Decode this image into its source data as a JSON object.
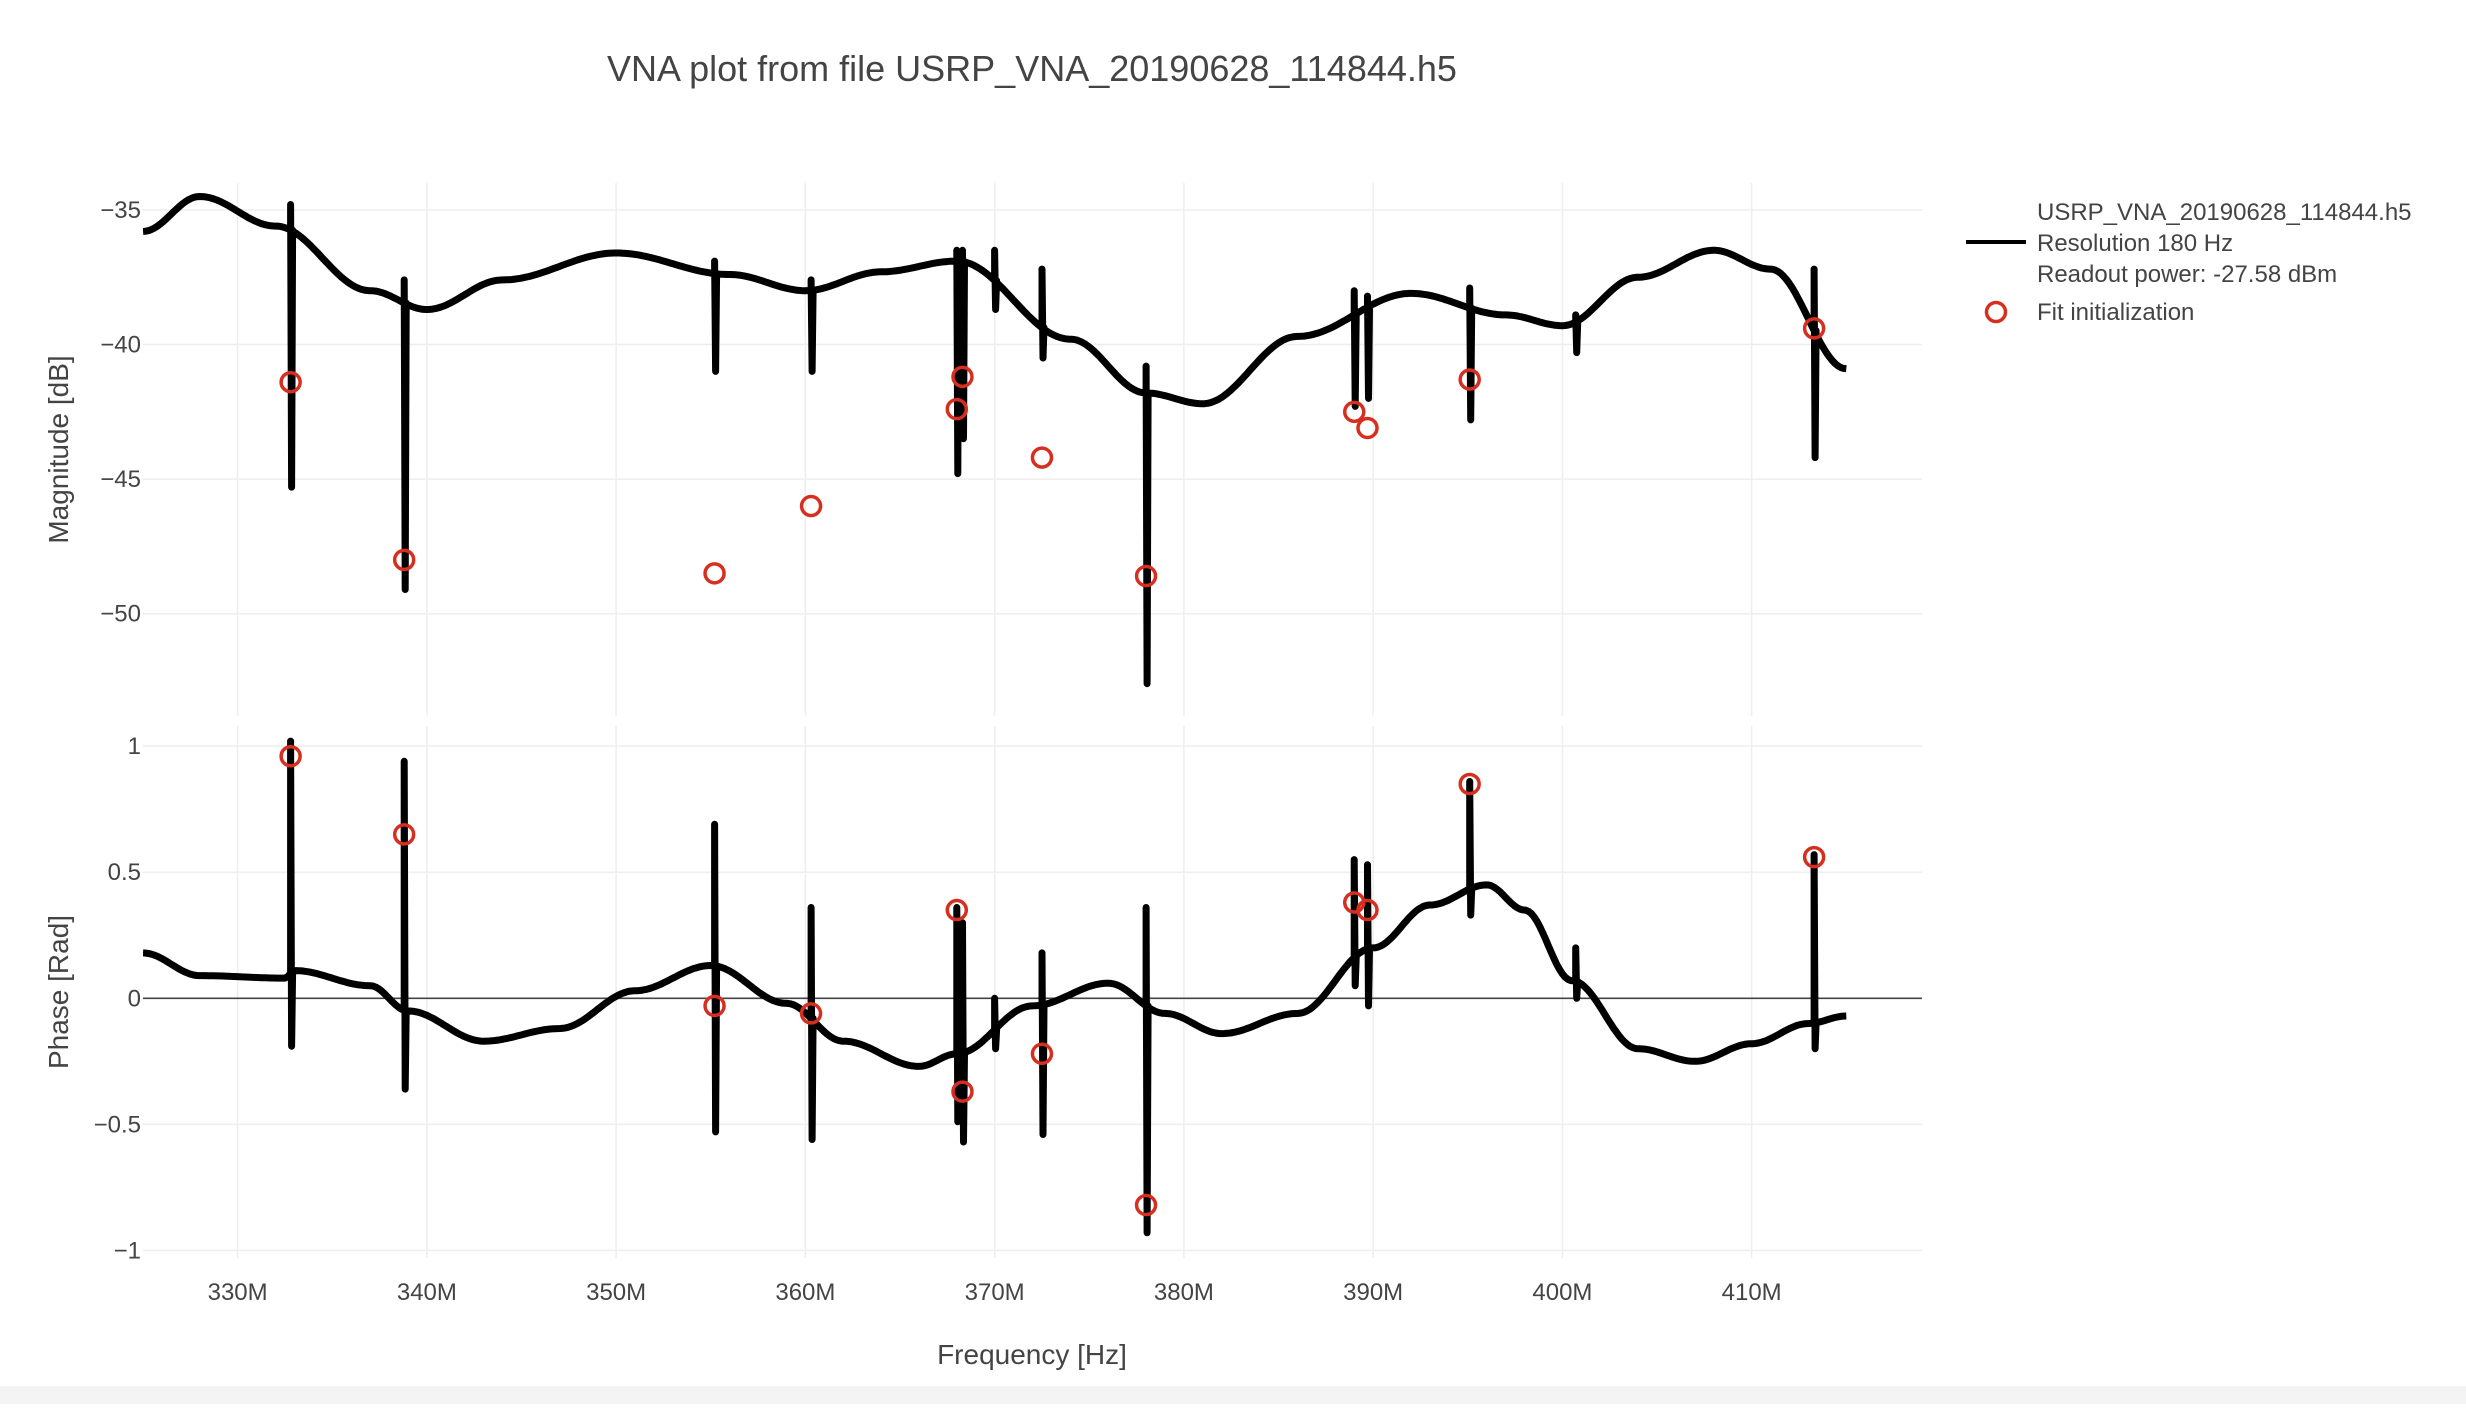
{
  "chart_data": {
    "type": "line",
    "title": "VNA plot from file USRP_VNA_20190628_114844.h5",
    "xlabel": "Frequency [Hz]",
    "x_range": [
      325000000,
      419000000
    ],
    "x_ticks": [
      330000000,
      340000000,
      350000000,
      360000000,
      370000000,
      380000000,
      390000000,
      400000000,
      410000000
    ],
    "x_tick_labels": [
      "330M",
      "340M",
      "350M",
      "360M",
      "370M",
      "380M",
      "390M",
      "400M",
      "410M"
    ],
    "grid": true,
    "legend_position": "right",
    "legend": {
      "line_label_lines": [
        "USRP_VNA_20190628_114844.h5",
        "Resolution 180 Hz",
        "Readout power: -27.58 dBm"
      ],
      "marker_label": "Fit initialization"
    },
    "colors": {
      "trace": "#000000",
      "marker": "#d62f1f",
      "grid": "#eeeeee",
      "zero_line": "#444444"
    },
    "panels": [
      {
        "name": "magnitude",
        "ylabel": "Magnitude [dB]",
        "y_range": [
          -53.8,
          -34.0
        ],
        "y_ticks": [
          -35,
          -40,
          -45,
          -50
        ],
        "y_tick_labels": [
          "−35",
          "−40",
          "−45",
          "−50"
        ],
        "trace": {
          "x": [
            325000000,
            328000000,
            332000000,
            337000000,
            340000000,
            344000000,
            350000000,
            356000000,
            360000000,
            364000000,
            368000000,
            374000000,
            378000000,
            381000000,
            386000000,
            392000000,
            397000000,
            400000000,
            404000000,
            408000000,
            411000000,
            415000000
          ],
          "y": [
            -35.8,
            -34.5,
            -35.6,
            -38.0,
            -38.7,
            -37.6,
            -36.6,
            -37.4,
            -38.0,
            -37.3,
            -36.9,
            -39.8,
            -41.8,
            -42.2,
            -39.7,
            -38.1,
            -38.9,
            -39.3,
            -37.5,
            -36.5,
            -37.2,
            -40.9
          ]
        },
        "resonances": [
          {
            "x": 332800000,
            "y": -36.0,
            "top": -34.8,
            "bottom": -45.3
          },
          {
            "x": 338800000,
            "y": -38.3,
            "top": -37.6,
            "bottom": -49.1
          },
          {
            "x": 355200000,
            "y": -37.3,
            "top": -36.9,
            "bottom": -41.0
          },
          {
            "x": 360300000,
            "y": -38.0,
            "top": -37.6,
            "bottom": -41.0
          },
          {
            "x": 368000000,
            "y": -36.9,
            "top": -36.5,
            "bottom": -44.8
          },
          {
            "x": 368300000,
            "y": -36.9,
            "top": -36.5,
            "bottom": -43.5
          },
          {
            "x": 370000000,
            "y": -37.6,
            "top": -36.5,
            "bottom": -38.7
          },
          {
            "x": 372500000,
            "y": -38.6,
            "top": -37.2,
            "bottom": -40.5
          },
          {
            "x": 378000000,
            "y": -41.8,
            "top": -40.8,
            "bottom": -52.6
          },
          {
            "x": 389000000,
            "y": -38.3,
            "top": -38.0,
            "bottom": -42.3
          },
          {
            "x": 389700000,
            "y": -38.2,
            "top": -38.2,
            "bottom": -42.0
          },
          {
            "x": 395100000,
            "y": -38.4,
            "top": -37.9,
            "bottom": -42.8
          },
          {
            "x": 400700000,
            "y": -39.2,
            "top": -38.9,
            "bottom": -40.3
          },
          {
            "x": 413300000,
            "y": -38.5,
            "top": -37.2,
            "bottom": -44.2
          }
        ],
        "markers": {
          "x": [
            332800000,
            338800000,
            355200000,
            360300000,
            368000000,
            368300000,
            372500000,
            378000000,
            389000000,
            389700000,
            395100000,
            413300000
          ],
          "y": [
            -41.4,
            -48.0,
            -48.5,
            -46.0,
            -42.4,
            -41.2,
            -44.2,
            -48.6,
            -42.5,
            -43.1,
            -41.3,
            -39.4
          ]
        }
      },
      {
        "name": "phase",
        "ylabel": "Phase [Rad]",
        "y_range": [
          -1.03,
          1.08
        ],
        "y_ticks": [
          1,
          0.5,
          0,
          -0.5,
          -1
        ],
        "y_tick_labels": [
          "1",
          "0.5",
          "0",
          "−0.5",
          "−1"
        ],
        "zero_line": true,
        "trace": {
          "x": [
            325000000,
            328000000,
            332500000,
            333000000,
            337000000,
            339000000,
            343000000,
            347000000,
            351000000,
            355000000,
            359000000,
            362000000,
            366000000,
            368000000,
            372000000,
            376000000,
            379000000,
            382000000,
            386000000,
            390000000,
            393000000,
            396000000,
            398000000,
            400500000,
            404000000,
            407000000,
            410000000,
            413000000,
            415000000
          ],
          "y": [
            0.18,
            0.09,
            0.08,
            0.11,
            0.05,
            -0.05,
            -0.17,
            -0.12,
            0.03,
            0.13,
            -0.02,
            -0.17,
            -0.27,
            -0.22,
            -0.03,
            0.06,
            -0.06,
            -0.14,
            -0.06,
            0.2,
            0.37,
            0.45,
            0.35,
            0.07,
            -0.2,
            -0.25,
            -0.18,
            -0.1,
            -0.07
          ]
        },
        "resonances": [
          {
            "x": 332800000,
            "y": 0.1,
            "top": 1.02,
            "bottom": -0.19
          },
          {
            "x": 338800000,
            "y": -0.04,
            "top": 0.94,
            "bottom": -0.36
          },
          {
            "x": 355200000,
            "y": 0.13,
            "top": 0.69,
            "bottom": -0.53
          },
          {
            "x": 360300000,
            "y": -0.06,
            "top": 0.36,
            "bottom": -0.56
          },
          {
            "x": 368000000,
            "y": -0.2,
            "top": 0.36,
            "bottom": -0.49
          },
          {
            "x": 368300000,
            "y": -0.22,
            "top": 0.3,
            "bottom": -0.57
          },
          {
            "x": 370000000,
            "y": -0.16,
            "top": 0.0,
            "bottom": -0.2
          },
          {
            "x": 372500000,
            "y": -0.03,
            "top": 0.18,
            "bottom": -0.54
          },
          {
            "x": 378000000,
            "y": 0.05,
            "top": 0.36,
            "bottom": -0.93
          },
          {
            "x": 389000000,
            "y": 0.13,
            "top": 0.55,
            "bottom": 0.05
          },
          {
            "x": 389700000,
            "y": 0.2,
            "top": 0.53,
            "bottom": -0.03
          },
          {
            "x": 395100000,
            "y": 0.45,
            "top": 0.86,
            "bottom": 0.33
          },
          {
            "x": 400700000,
            "y": 0.05,
            "top": 0.2,
            "bottom": 0.0
          },
          {
            "x": 413300000,
            "y": -0.09,
            "top": 0.57,
            "bottom": -0.2
          }
        ],
        "markers": {
          "x": [
            332800000,
            338800000,
            355200000,
            360300000,
            368000000,
            368300000,
            372500000,
            378000000,
            389000000,
            389700000,
            395100000,
            413300000
          ],
          "y": [
            0.96,
            0.65,
            -0.03,
            -0.06,
            0.35,
            -0.37,
            -0.22,
            -0.82,
            0.38,
            0.35,
            0.85,
            0.56
          ]
        }
      }
    ]
  }
}
